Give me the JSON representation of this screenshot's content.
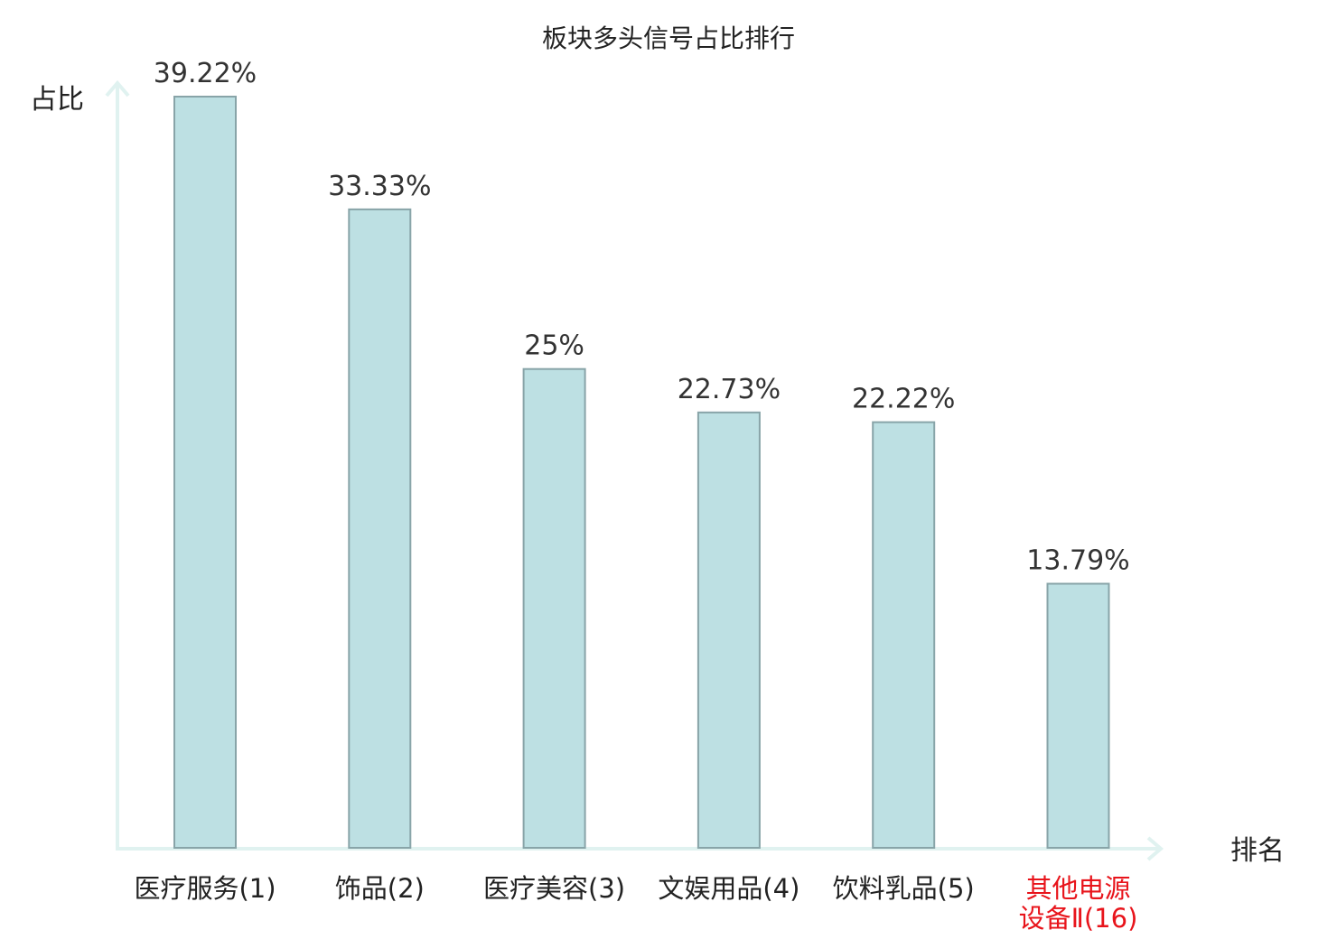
{
  "chart_data": {
    "type": "bar",
    "title": "板块多头信号占比排行",
    "ylabel": "占比",
    "xlabel": "排名",
    "ylim": [
      0,
      41.7
    ],
    "grid": false,
    "categories": [
      [
        "医疗服务(1)"
      ],
      [
        "饰品(2)"
      ],
      [
        "医疗美容(3)"
      ],
      [
        "文娱用品(4)"
      ],
      [
        "饮料乳品(5)"
      ],
      [
        "其他电源",
        "设备Ⅱ(16)"
      ]
    ],
    "values": [
      39.22,
      33.33,
      25,
      22.73,
      22.22,
      13.79
    ],
    "value_labels": [
      "39.22%",
      "33.33%",
      "25%",
      "22.73%",
      "22.22%",
      "13.79%"
    ],
    "highlight_index": 5,
    "colors": {
      "bar_fill": "#bde0e3",
      "bar_stroke": "#88a4a8",
      "axis": "#e0f2f0",
      "highlight_text": "#e8141b"
    }
  }
}
